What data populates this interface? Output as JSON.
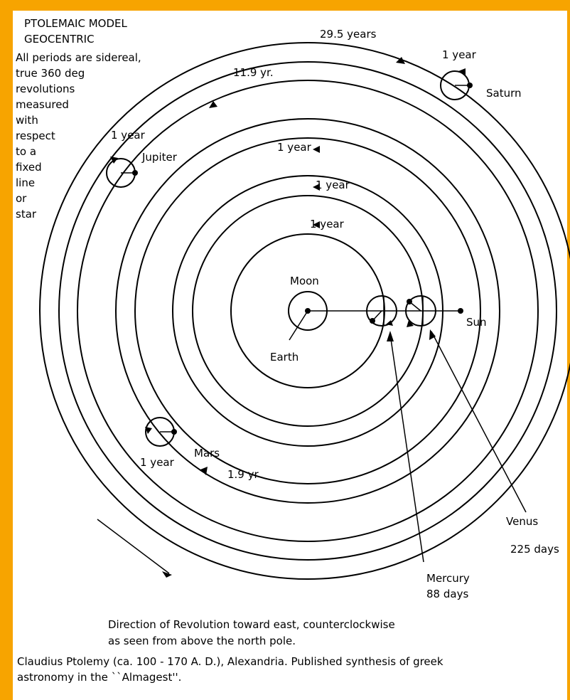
{
  "header": {
    "title": "PTOLEMAIC MODEL",
    "subtitle": "GEOCENTRIC"
  },
  "note": [
    "All periods are sidereal,",
    "true 360 deg",
    "revolutions",
    "measured",
    "with",
    "respect",
    "to a",
    "fixed",
    "line",
    "or",
    "star"
  ],
  "labels": {
    "saturn_period": "29.5 years",
    "saturn_epicycle": "1 year",
    "saturn": "Saturn",
    "jupiter_period": "11.9 yr.",
    "jupiter_epicycle": "1 year",
    "jupiter": "Jupiter",
    "sun_period": "1 year",
    "venus_period": "1 year",
    "mercury_period": "1 year",
    "moon": "Moon",
    "earth": "Earth",
    "sun": "Sun",
    "mars": "Mars",
    "mars_epicycle": "1 year",
    "mars_period": "1.9 yr",
    "venus": "Venus",
    "venus_days": "225 days",
    "mercury": "Mercury",
    "mercury_days": "88 days"
  },
  "caption": [
    "Direction of Revolution toward east, counterclockwise",
    "as seen from above the north pole."
  ],
  "footer": [
    "Claudius Ptolemy (ca. 100 - 170 A. D.), Alexandria. Published synthesis of greek",
    "astronomy in the ``Almagest''."
  ]
}
